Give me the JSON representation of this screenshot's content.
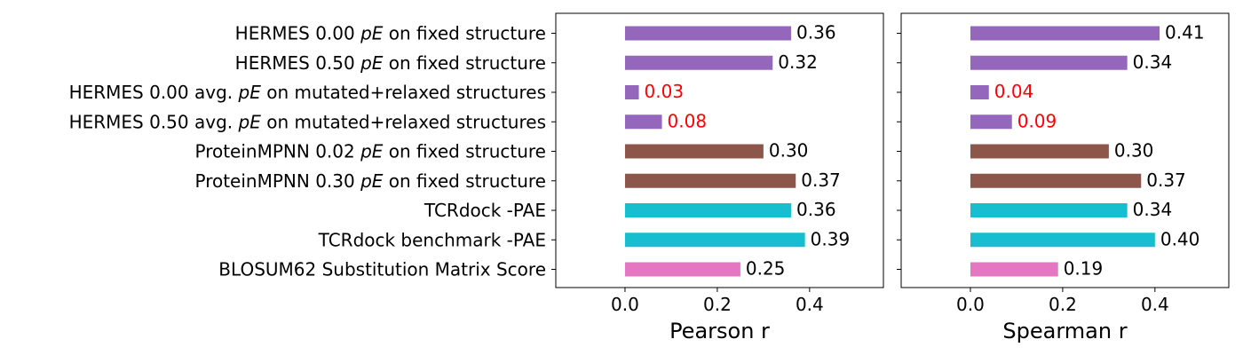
{
  "chart_data": {
    "type": "bar",
    "orientation": "horizontal",
    "grid": false,
    "categories": [
      [
        "HERMES 0.00 ",
        "pE",
        " on fixed structure"
      ],
      [
        "HERMES 0.50 ",
        "pE",
        " on fixed structure"
      ],
      [
        "HERMES 0.00 avg. ",
        "pE",
        " on mutated+relaxed structures"
      ],
      [
        "HERMES 0.50 avg. ",
        "pE",
        " on mutated+relaxed structures"
      ],
      [
        "ProteinMPNN 0.02 ",
        "pE",
        " on fixed structure"
      ],
      [
        "ProteinMPNN 0.30 ",
        "pE",
        " on fixed structure"
      ],
      [
        "TCRdock -PAE",
        "",
        ""
      ],
      [
        "TCRdock benchmark -PAE",
        "",
        ""
      ],
      [
        "BLOSUM62 Substitution Matrix Score",
        "",
        ""
      ]
    ],
    "bar_colors": [
      "#9467bd",
      "#9467bd",
      "#9467bd",
      "#9467bd",
      "#8c564b",
      "#8c564b",
      "#17becf",
      "#17becf",
      "#e377c2"
    ],
    "label_colors": [
      "#000000",
      "#000000",
      "#ff0000",
      "#ff0000",
      "#000000",
      "#000000",
      "#000000",
      "#000000",
      "#000000"
    ],
    "panels": [
      {
        "xlabel": "Pearson r",
        "xlim": [
          -0.15,
          0.56
        ],
        "xticks": [
          0.0,
          0.2,
          0.4
        ],
        "xtick_labels": [
          "0.0",
          "0.2",
          "0.4"
        ],
        "values": [
          0.36,
          0.32,
          0.03,
          0.08,
          0.3,
          0.37,
          0.36,
          0.39,
          0.25
        ],
        "value_labels": [
          "0.36",
          "0.32",
          "0.03",
          "0.08",
          "0.30",
          "0.37",
          "0.36",
          "0.39",
          "0.25"
        ]
      },
      {
        "xlabel": "Spearman r",
        "xlim": [
          -0.15,
          0.56
        ],
        "xticks": [
          0.0,
          0.2,
          0.4
        ],
        "xtick_labels": [
          "0.0",
          "0.2",
          "0.4"
        ],
        "values": [
          0.41,
          0.34,
          0.04,
          0.09,
          0.3,
          0.37,
          0.34,
          0.4,
          0.19
        ],
        "value_labels": [
          "0.41",
          "0.34",
          "0.04",
          "0.09",
          "0.30",
          "0.37",
          "0.34",
          "0.40",
          "0.19"
        ]
      }
    ]
  }
}
